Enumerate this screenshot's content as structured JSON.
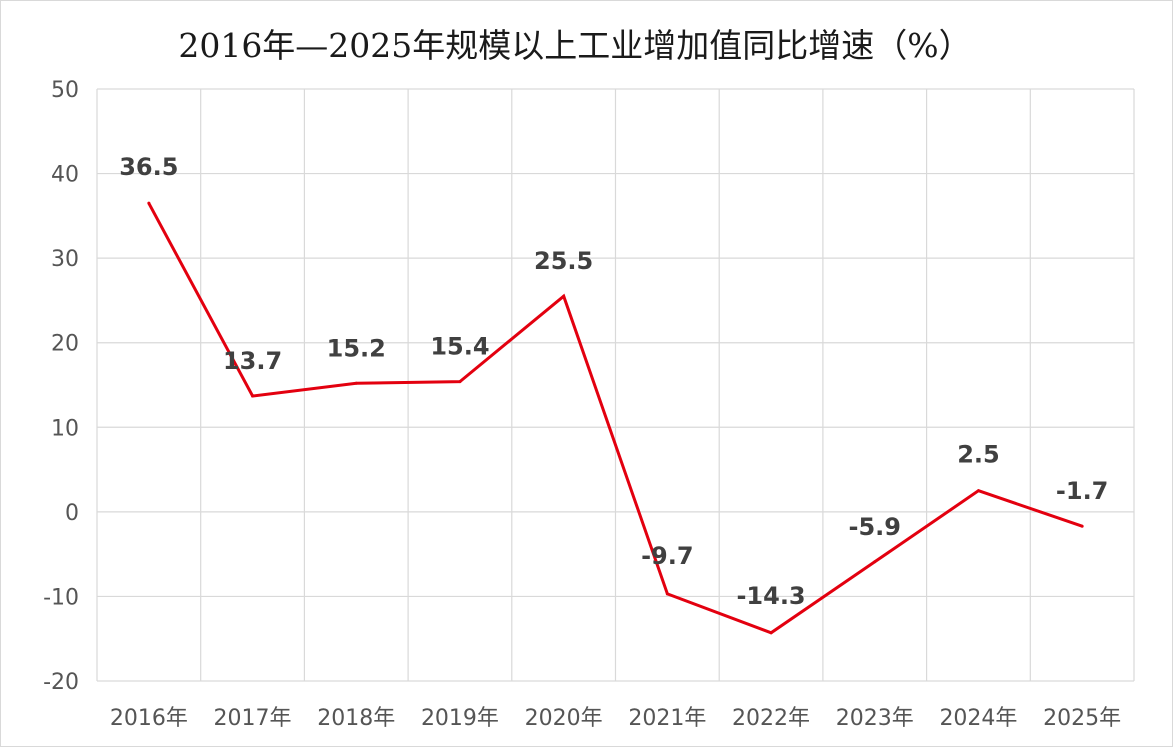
{
  "chart_data": {
    "type": "line",
    "title": "2016年—2025年规模以上工业增加值同比增速（%）",
    "xlabel": "",
    "ylabel": "",
    "categories": [
      "2016年",
      "2017年",
      "2018年",
      "2019年",
      "2020年",
      "2021年",
      "2022年",
      "2023年",
      "2024年",
      "2025年"
    ],
    "series": [
      {
        "values": [
          36.5,
          13.7,
          15.2,
          15.4,
          25.5,
          -9.7,
          -14.3,
          -5.9,
          2.5,
          -1.7
        ],
        "color": "#e3000f"
      }
    ],
    "data_labels": [
      "36.5",
      "13.7",
      "15.2",
      "15.4",
      "25.5",
      "-9.7",
      "-14.3",
      "-5.9",
      "2.5",
      "-1.7"
    ],
    "ylim": [
      -20,
      50
    ],
    "yticks": [
      50,
      40,
      30,
      20,
      10,
      0,
      -10,
      -20
    ],
    "grid": true,
    "legend": "none",
    "colors": {
      "line": "#e3000f",
      "grid": "#d9d9d9",
      "text": "#404040"
    }
  }
}
